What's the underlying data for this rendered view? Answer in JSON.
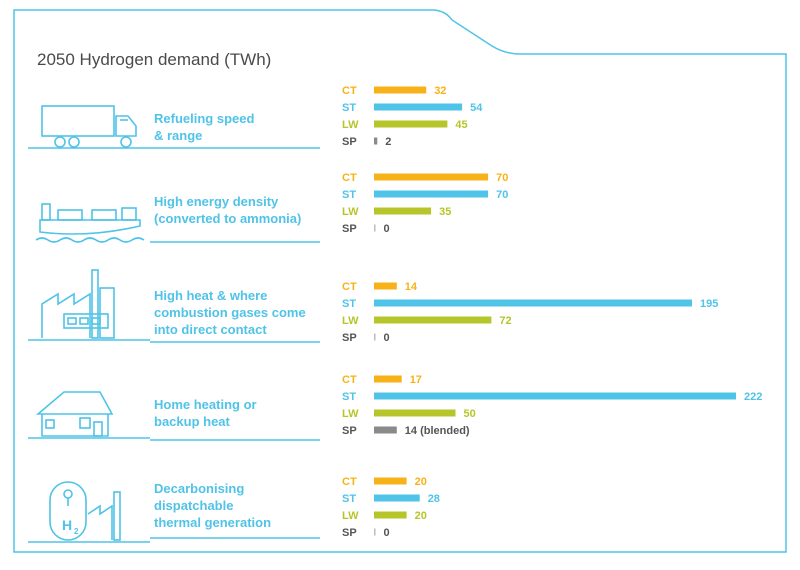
{
  "title": "2050 Hydrogen demand (TWh)",
  "colors": {
    "CT": "#f8b219",
    "ST": "#4fc3e8",
    "LW": "#b6c52a",
    "SP": "#8a8a8a",
    "frame": "#4fc3e8",
    "icon": "#4fc3e8"
  },
  "chart_data": {
    "type": "bar",
    "orientation": "horizontal",
    "title": "2050 Hydrogen demand (TWh)",
    "scenarios": [
      "CT",
      "ST",
      "LW",
      "SP"
    ],
    "groups": [
      {
        "label": "Refueling speed & range",
        "icon": "truck-icon",
        "values": {
          "CT": 32,
          "ST": 54,
          "LW": 45,
          "SP": 2
        },
        "value_labels": {
          "CT": "32",
          "ST": "54",
          "LW": "45",
          "SP": "2"
        }
      },
      {
        "label": "High energy density (converted to ammonia)",
        "icon": "ship-icon",
        "values": {
          "CT": 70,
          "ST": 70,
          "LW": 35,
          "SP": 0
        },
        "value_labels": {
          "CT": "70",
          "ST": "70",
          "LW": "35",
          "SP": "0"
        }
      },
      {
        "label": "High heat & where combustion gases come into direct contact",
        "icon": "factory-icon",
        "values": {
          "CT": 14,
          "ST": 195,
          "LW": 72,
          "SP": 0
        },
        "value_labels": {
          "CT": "14",
          "ST": "195",
          "LW": "72",
          "SP": "0"
        }
      },
      {
        "label": "Home heating or backup heat",
        "icon": "house-icon",
        "values": {
          "CT": 17,
          "ST": 222,
          "LW": 50,
          "SP": 14
        },
        "value_labels": {
          "CT": "17",
          "ST": "222",
          "LW": "50",
          "SP": "14 (blended)"
        }
      },
      {
        "label": "Decarbonising dispatchable thermal generation",
        "icon": "hydrogen-plant-icon",
        "values": {
          "CT": 20,
          "ST": 28,
          "LW": 20,
          "SP": 0
        },
        "value_labels": {
          "CT": "20",
          "ST": "28",
          "LW": "20",
          "SP": "0"
        }
      }
    ],
    "xlim": [
      0,
      222
    ]
  },
  "labels": {
    "row0": [
      "Refueling speed",
      "& range"
    ],
    "row1": [
      "High energy density",
      "(converted to ammonia)"
    ],
    "row2": [
      "High heat & where",
      "combustion gases come",
      "into direct contact"
    ],
    "row3": [
      "Home heating or",
      "backup heat"
    ],
    "row4": [
      "Decarbonising",
      "dispatchable",
      "thermal generation"
    ]
  }
}
